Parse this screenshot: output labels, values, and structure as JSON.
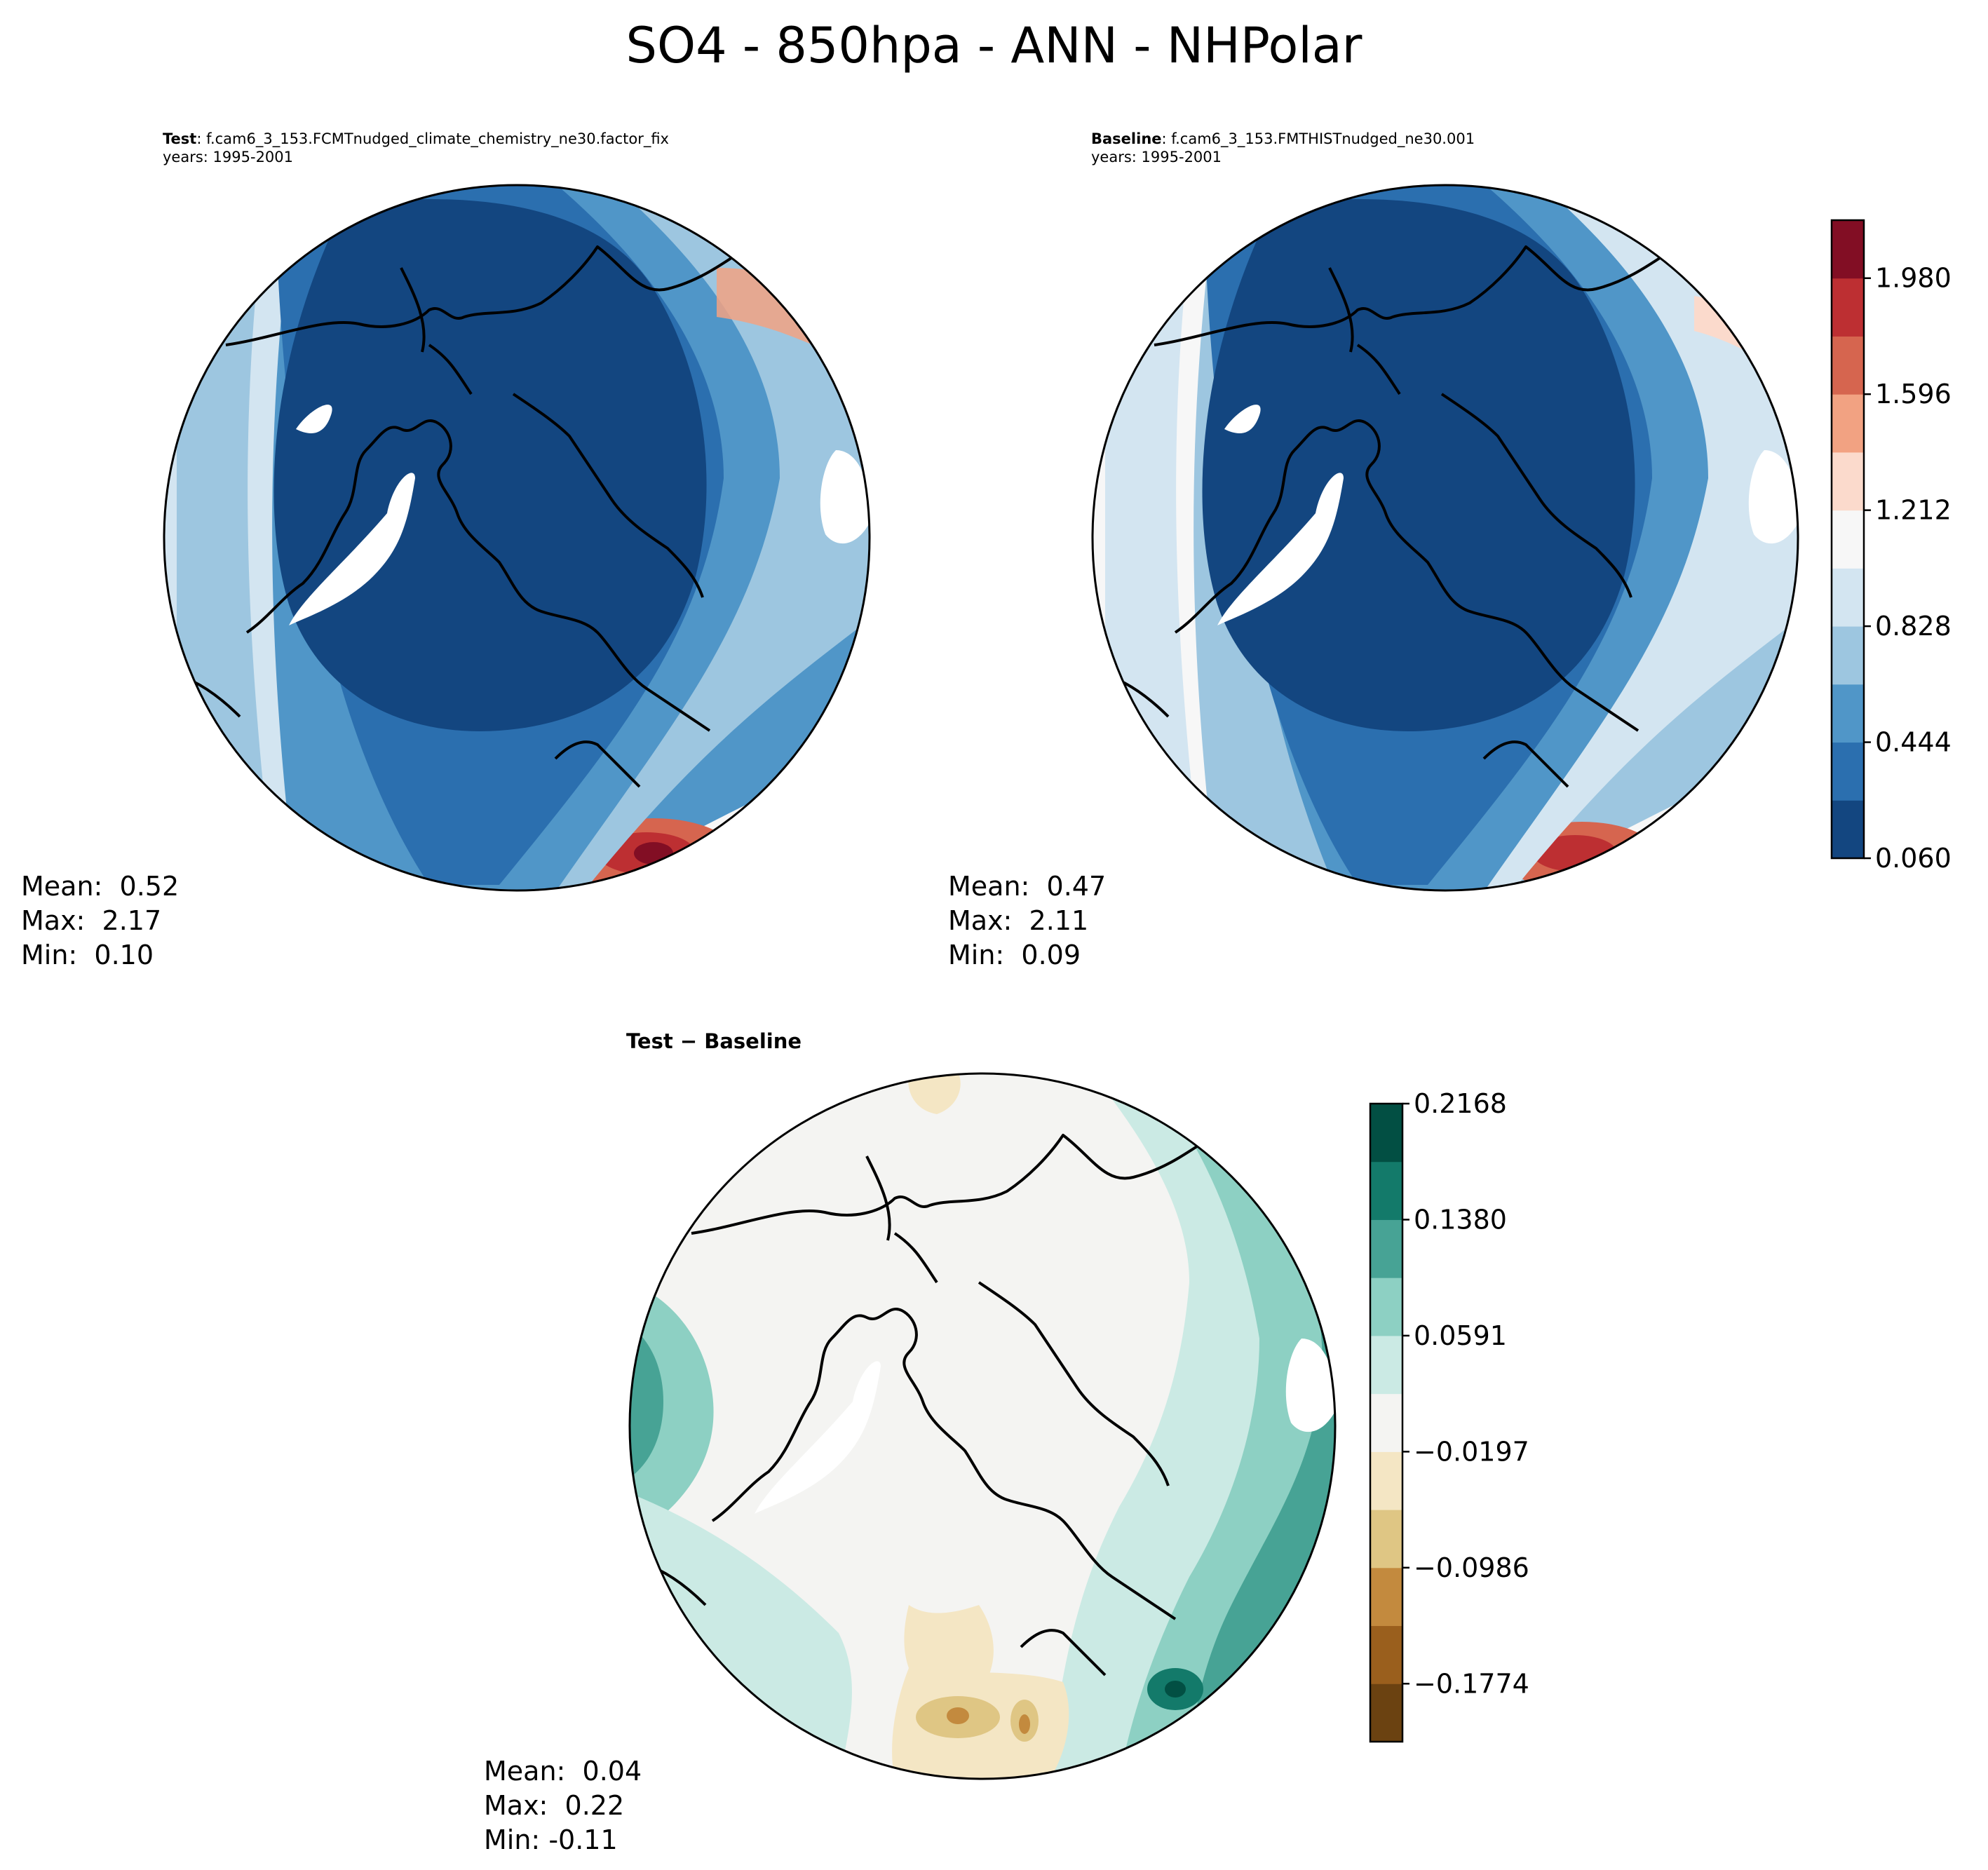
{
  "title": "SO4 - 850hpa - ANN - NHPolar",
  "panels": {
    "test": {
      "label_key": "Test",
      "label_value": ": f.cam6_3_153.FCMTnudged_climate_chemistry_ne30.factor_fix",
      "years": "years: 1995-2001",
      "mean_label": "Mean:",
      "mean": "0.52",
      "max_label": "Max:",
      "max": "2.17",
      "min_label": "Min:",
      "min": "0.10"
    },
    "baseline": {
      "label_key": "Baseline",
      "label_value": ": f.cam6_3_153.FMTHISTnudged_ne30.001",
      "years": "years: 1995-2001",
      "mean_label": "Mean:",
      "mean": "0.47",
      "max_label": "Max:",
      "max": "2.11",
      "min_label": "Min:",
      "min": "0.09"
    },
    "diff": {
      "title": "Test − Baseline",
      "mean_label": "Mean:",
      "mean": "0.04",
      "max_label": "Max:",
      "max": "0.22",
      "min_label": "Min:",
      "min": "-0.11"
    }
  },
  "colorbars": {
    "main": {
      "ticks": [
        "0.060",
        "0.444",
        "0.828",
        "1.212",
        "1.596",
        "1.980"
      ],
      "colors": [
        "#134680",
        "#2b6faf",
        "#5096c8",
        "#9dc6e0",
        "#d3e5f1",
        "#f7f7f7",
        "#fbdacc",
        "#f2a282",
        "#d6654f",
        "#bd2f32",
        "#820e24"
      ]
    },
    "diff": {
      "ticks": [
        "−0.1774",
        "−0.0986",
        "−0.0197",
        "0.0591",
        "0.1380",
        "0.2168"
      ],
      "colors": [
        "#6b4211",
        "#9a5f1d",
        "#c38a3e",
        "#dfc684",
        "#f4e6c4",
        "#f4f4f2",
        "#cbeae4",
        "#8dd0c3",
        "#47a395",
        "#137a6a",
        "#024f43"
      ]
    }
  },
  "colors": {
    "land_missing": "#ffffff",
    "coastline": "#000000"
  }
}
